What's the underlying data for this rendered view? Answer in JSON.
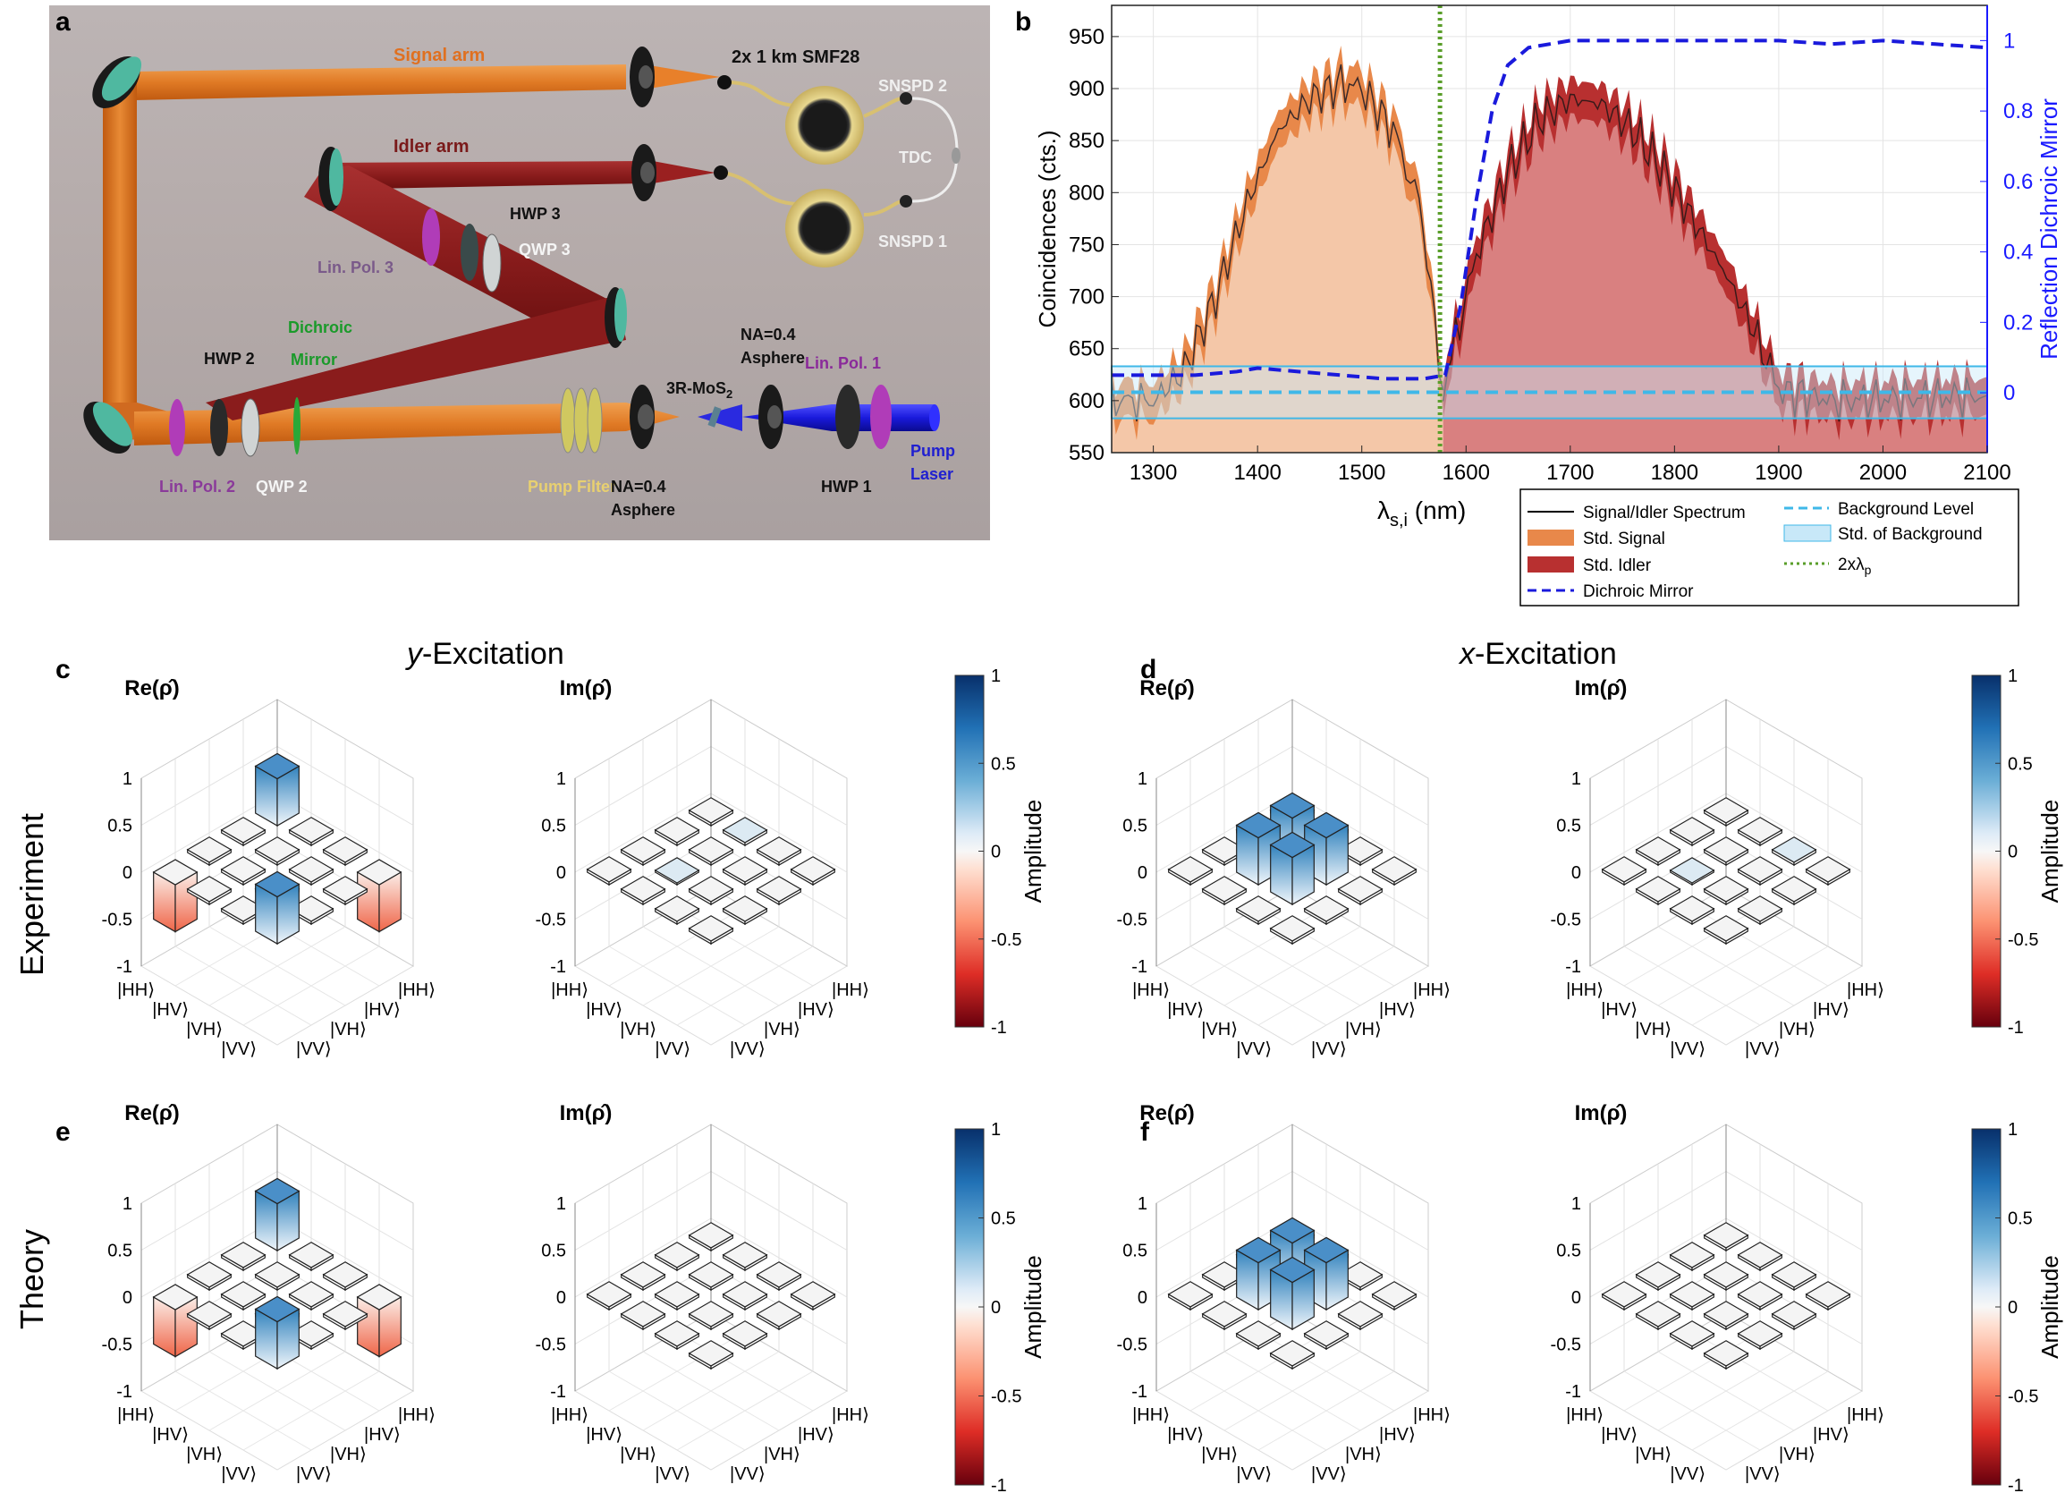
{
  "panel_a": {
    "label": "a",
    "signal_arm": "Signal arm",
    "idler_arm": "Idler arm",
    "fiber": "2x 1 km SMF28",
    "snspd2": "SNSPD 2",
    "snspd1": "SNSPD 1",
    "tdc": "TDC",
    "hwp3": "HWP 3",
    "qwp3": "QWP 3",
    "linpol3": "Lin. Pol. 3",
    "dichroic_line1": "Dichroic",
    "dichroic_line2": "Mirror",
    "hwp2": "HWP 2",
    "linpol2": "Lin. Pol. 2",
    "qwp2": "QWP 2",
    "pump_filter": "Pump Filter",
    "na_asphere_top_line1": "NA=0.4",
    "na_asphere_top_line2": "Asphere",
    "na_asphere_bottom_line1": "NA=0.4",
    "na_asphere_bottom_line2": "Asphere",
    "sample": "3R-MoS",
    "sample_sub": "2",
    "linpol1": "Lin. Pol. 1",
    "hwp1": "HWP 1",
    "pump_line1": "Pump",
    "pump_line2": "Laser"
  },
  "panel_b": {
    "label": "b",
    "chart_data": {
      "type": "area",
      "xlabel": "λ",
      "xlabel_sub": "s,i",
      "xlabel_unit": " (nm)",
      "ylabel": "Coincidences (cts.)",
      "ylabel_right": "Reflection Dichroic Mirror",
      "xlim": [
        1260,
        2100
      ],
      "ylim": [
        550,
        980
      ],
      "ylim_right": [
        -0.17,
        1.1
      ],
      "x_ticks": [
        "1300",
        "1400",
        "1500",
        "1600",
        "1700",
        "1800",
        "1900",
        "2000",
        "2100"
      ],
      "y_ticks": [
        "550",
        "600",
        "650",
        "700",
        "750",
        "800",
        "850",
        "900",
        "950"
      ],
      "y_right_ticks": [
        "0",
        "0.2",
        "0.4",
        "0.6",
        "0.8",
        "1"
      ],
      "background_level": 608,
      "background_std": [
        583,
        633
      ],
      "pump_double_x": 1575,
      "signal_envelope": [
        [
          1260,
          600
        ],
        [
          1300,
          600
        ],
        [
          1330,
          630
        ],
        [
          1360,
          700
        ],
        [
          1390,
          790
        ],
        [
          1420,
          860
        ],
        [
          1450,
          890
        ],
        [
          1480,
          905
        ],
        [
          1500,
          900
        ],
        [
          1530,
          860
        ],
        [
          1555,
          790
        ],
        [
          1570,
          680
        ],
        [
          1578,
          610
        ]
      ],
      "idler_envelope": [
        [
          1578,
          610
        ],
        [
          1590,
          660
        ],
        [
          1610,
          740
        ],
        [
          1640,
          820
        ],
        [
          1670,
          870
        ],
        [
          1700,
          890
        ],
        [
          1730,
          885
        ],
        [
          1760,
          860
        ],
        [
          1790,
          820
        ],
        [
          1820,
          770
        ],
        [
          1850,
          720
        ],
        [
          1880,
          660
        ],
        [
          1900,
          610
        ],
        [
          1950,
          600
        ],
        [
          2100,
          605
        ]
      ],
      "dichroic_curve": [
        [
          1260,
          0.05
        ],
        [
          1300,
          0.05
        ],
        [
          1340,
          0.05
        ],
        [
          1380,
          0.06
        ],
        [
          1400,
          0.07
        ],
        [
          1440,
          0.06
        ],
        [
          1480,
          0.05
        ],
        [
          1520,
          0.04
        ],
        [
          1560,
          0.04
        ],
        [
          1580,
          0.05
        ],
        [
          1595,
          0.25
        ],
        [
          1610,
          0.55
        ],
        [
          1625,
          0.8
        ],
        [
          1640,
          0.93
        ],
        [
          1660,
          0.98
        ],
        [
          1700,
          1.0
        ],
        [
          1800,
          1.0
        ],
        [
          1900,
          1.0
        ],
        [
          1950,
          0.99
        ],
        [
          2000,
          1.0
        ],
        [
          2050,
          0.99
        ],
        [
          2100,
          0.98
        ]
      ],
      "legend": {
        "spectrum": "Signal/Idler Spectrum",
        "std_signal": "Std. Signal",
        "std_idler": "Std. Idler",
        "dichroic": "Dichroic Mirror",
        "background": "Background Level",
        "std_background": "Std. of Background",
        "pump": "2xλ",
        "pump_sub": "p"
      }
    }
  },
  "panels_density": {
    "label_c": "c",
    "label_d": "d",
    "label_e": "e",
    "label_f": "f",
    "title_y_prefix": "y",
    "title_y_suffix": "-Excitation",
    "title_x_prefix": "x",
    "title_x_suffix": "-Excitation",
    "row_experiment": "Experiment",
    "row_theory": "Theory",
    "re_title": "Re(ρ̂)",
    "im_title": "Im(ρ̂)",
    "z_ticks": [
      "1",
      "0.5",
      "0",
      "-0.5",
      "-1"
    ],
    "basis": [
      "|HH⟩",
      "|HV⟩",
      "|VH⟩",
      "|VV⟩"
    ],
    "colorbar_label": "Amplitude",
    "colorbar_ticks": [
      "1",
      "0.5",
      "0",
      "-0.5",
      "-1"
    ],
    "matrices": {
      "c_re": [
        [
          0.5,
          0,
          0,
          -0.5
        ],
        [
          0,
          0,
          0,
          0
        ],
        [
          0,
          0,
          0,
          0
        ],
        [
          -0.5,
          0,
          0,
          0.5
        ]
      ],
      "c_im": [
        [
          0,
          0.03,
          0,
          0
        ],
        [
          0,
          0,
          0,
          0
        ],
        [
          0,
          0.02,
          0,
          0
        ],
        [
          0,
          0,
          0,
          0
        ]
      ],
      "d_re": [
        [
          0,
          0,
          0,
          0
        ],
        [
          0,
          0.5,
          0.5,
          0
        ],
        [
          0,
          0.5,
          0.5,
          0
        ],
        [
          0,
          0,
          0,
          0
        ]
      ],
      "d_im": [
        [
          0,
          0,
          0.03,
          0
        ],
        [
          0,
          0,
          0,
          0
        ],
        [
          0,
          0.02,
          0,
          0
        ],
        [
          0,
          0,
          0,
          0
        ]
      ],
      "e_re": [
        [
          0.5,
          0,
          0,
          -0.5
        ],
        [
          0,
          0,
          0,
          0
        ],
        [
          0,
          0,
          0,
          0
        ],
        [
          -0.5,
          0,
          0,
          0.5
        ]
      ],
      "e_im": [
        [
          0,
          0,
          0,
          0
        ],
        [
          0,
          0,
          0,
          0
        ],
        [
          0,
          0,
          0,
          0
        ],
        [
          0,
          0,
          0,
          0
        ]
      ],
      "f_re": [
        [
          0,
          0,
          0,
          0
        ],
        [
          0,
          0.5,
          0.5,
          0
        ],
        [
          0,
          0.5,
          0.5,
          0
        ],
        [
          0,
          0,
          0,
          0
        ]
      ],
      "f_im": [
        [
          0,
          0,
          0,
          0
        ],
        [
          0,
          0,
          0,
          0
        ],
        [
          0,
          0,
          0,
          0
        ],
        [
          0,
          0,
          0,
          0
        ]
      ]
    }
  },
  "colors": {
    "signal": "#e8884a",
    "signal_fill": "#f4c7a8",
    "idler": "#b83030",
    "idler_fill": "#d98080",
    "dichroic": "#1a1adc",
    "background": "#3fb8e8",
    "pump_line": "#5a9e2a",
    "right_axis": "#1a1aff"
  }
}
